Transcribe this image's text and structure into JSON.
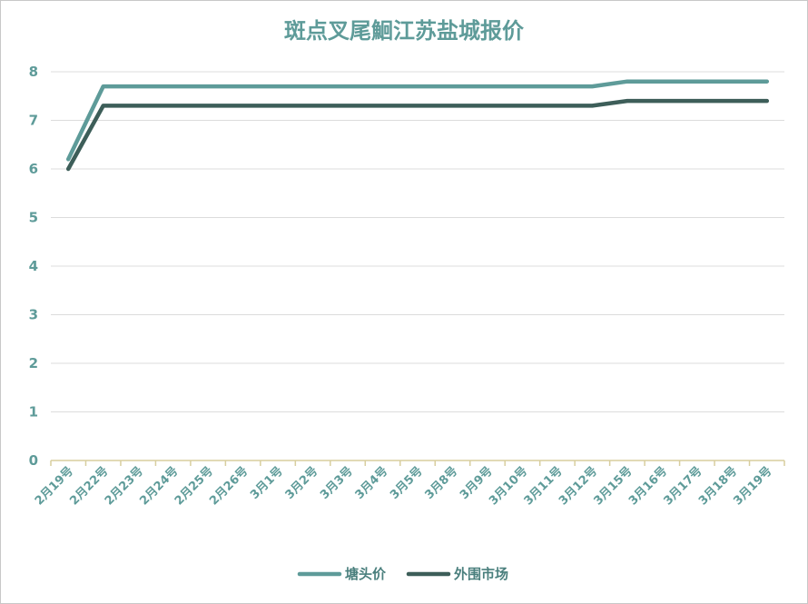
{
  "chart_data": {
    "type": "line",
    "title": "斑点叉尾鮰江苏盐城报价",
    "categories": [
      "2月19号",
      "2月22号",
      "2月23号",
      "2月24号",
      "2月25号",
      "2月26号",
      "3月1号",
      "3月2号",
      "3月3号",
      "3月4号",
      "3月5号",
      "3月8号",
      "3月9号",
      "3月10号",
      "3月11号",
      "3月12号",
      "3月15号",
      "3月16号",
      "3月17号",
      "3月18号",
      "3月19号"
    ],
    "series": [
      {
        "name": "塘头价",
        "color": "#5e9b99",
        "values": [
          6.2,
          7.7,
          7.7,
          7.7,
          7.7,
          7.7,
          7.7,
          7.7,
          7.7,
          7.7,
          7.7,
          7.7,
          7.7,
          7.7,
          7.7,
          7.7,
          7.8,
          7.8,
          7.8,
          7.8,
          7.8
        ]
      },
      {
        "name": "外围市场",
        "color": "#3d5e59",
        "values": [
          6.0,
          7.3,
          7.3,
          7.3,
          7.3,
          7.3,
          7.3,
          7.3,
          7.3,
          7.3,
          7.3,
          7.3,
          7.3,
          7.3,
          7.3,
          7.3,
          7.4,
          7.4,
          7.4,
          7.4,
          7.4
        ]
      }
    ],
    "yticks": [
      0,
      1,
      2,
      3,
      4,
      5,
      6,
      7,
      8
    ],
    "ylim": [
      0,
      8
    ],
    "grid": true,
    "legend_position": "bottom"
  }
}
